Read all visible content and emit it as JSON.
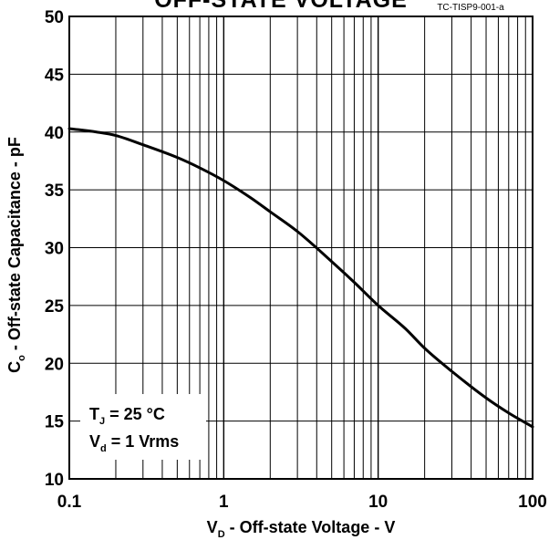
{
  "chart_data": {
    "type": "line",
    "title": "OFF-STATE VOLTAGE",
    "figure_id": "TC-TISP9-001-a",
    "xlabel": {
      "main": "V",
      "sub": "D",
      "rest": " - Off-state Voltage - V"
    },
    "ylabel": {
      "main": "C",
      "sub": "o",
      "rest": " - Off-state Capacitance - pF"
    },
    "x_scale": "log",
    "xlim": [
      0.1,
      100
    ],
    "ylim": [
      10,
      50
    ],
    "x_ticks": [
      {
        "value": 0.1,
        "label": "0.1"
      },
      {
        "value": 1,
        "label": "1"
      },
      {
        "value": 10,
        "label": "10"
      },
      {
        "value": 100,
        "label": "100"
      }
    ],
    "y_ticks": [
      {
        "value": 10,
        "label": "10"
      },
      {
        "value": 15,
        "label": "15"
      },
      {
        "value": 20,
        "label": "20"
      },
      {
        "value": 25,
        "label": "25"
      },
      {
        "value": 30,
        "label": "30"
      },
      {
        "value": 35,
        "label": "35"
      },
      {
        "value": 40,
        "label": "40"
      },
      {
        "value": 45,
        "label": "45"
      },
      {
        "value": 50,
        "label": "50"
      }
    ],
    "grid": true,
    "annotation": {
      "line1": {
        "main": "T",
        "sub": "J",
        "rest": " = 25 °C"
      },
      "line2": {
        "main": "V",
        "sub": "d",
        "rest": " = 1 Vrms"
      }
    },
    "series": [
      {
        "x": [
          0.1,
          0.15,
          0.2,
          0.3,
          0.5,
          0.7,
          1,
          1.5,
          2,
          3,
          5,
          7,
          10,
          15,
          20,
          30,
          50,
          70,
          100
        ],
        "y": [
          40.3,
          40.0,
          39.7,
          38.9,
          37.8,
          36.9,
          35.8,
          34.3,
          33.1,
          31.4,
          28.8,
          27.0,
          25.0,
          23.0,
          21.3,
          19.3,
          17.0,
          15.7,
          14.5
        ]
      }
    ]
  }
}
